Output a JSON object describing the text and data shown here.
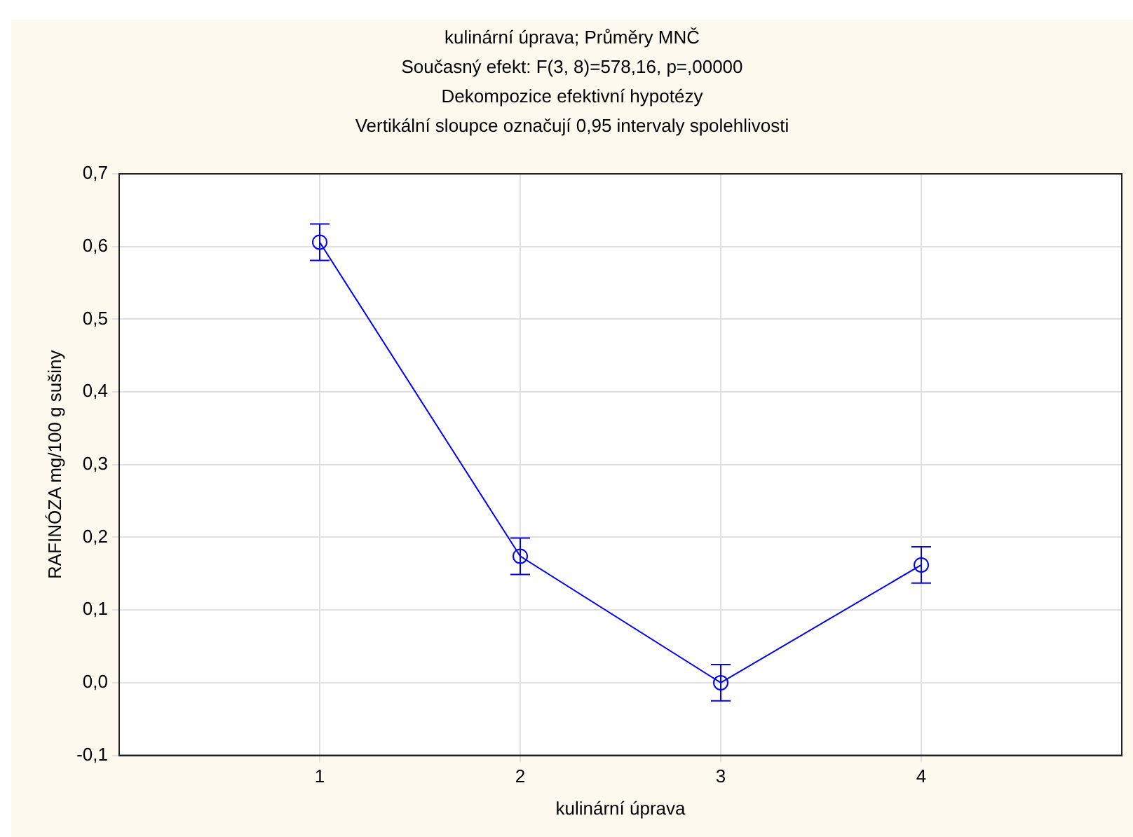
{
  "chart_data": {
    "type": "line",
    "title": "kulinární úprava; Průměry MNČ",
    "subtitle": "Současný efekt: F(3, 8)=578,16, p=,00000",
    "annotations": [
      "Dekompozice efektivní hypotézy",
      "Vertikální sloupce označují 0,95 intervaly spolehlivosti"
    ],
    "xlabel": "kulinární úprava",
    "ylabel": "RAFINÓZA mg/100 g sušiny",
    "x": [
      1,
      2,
      3,
      4
    ],
    "series": [
      {
        "color": "#0000ff",
        "values": [
          0.606,
          0.174,
          0.0,
          0.162
        ],
        "errors": [
          [
            0.581,
            0.631
          ],
          [
            0.149,
            0.199
          ],
          [
            -0.025,
            0.025
          ],
          [
            0.137,
            0.187
          ]
        ]
      }
    ],
    "xlim": [
      0,
      5
    ],
    "xticks": [
      1,
      2,
      3,
      4
    ],
    "ylim": [
      -0.1,
      0.7
    ],
    "yticks": [
      {
        "value": -0.1,
        "label": "-0,1"
      },
      {
        "value": 0,
        "label": "0,0"
      },
      {
        "value": 0.1,
        "label": "0,1"
      },
      {
        "value": 0.2,
        "label": "0,2"
      },
      {
        "value": 0.3,
        "label": "0,3"
      },
      {
        "value": 0.4,
        "label": "0,4"
      },
      {
        "value": 0.5,
        "label": "0,5"
      },
      {
        "value": 0.6,
        "label": "0,6"
      },
      {
        "value": 0.7,
        "label": "0,7"
      }
    ],
    "grid": true,
    "legend": false,
    "marker": "circle",
    "line_style": "solid"
  }
}
